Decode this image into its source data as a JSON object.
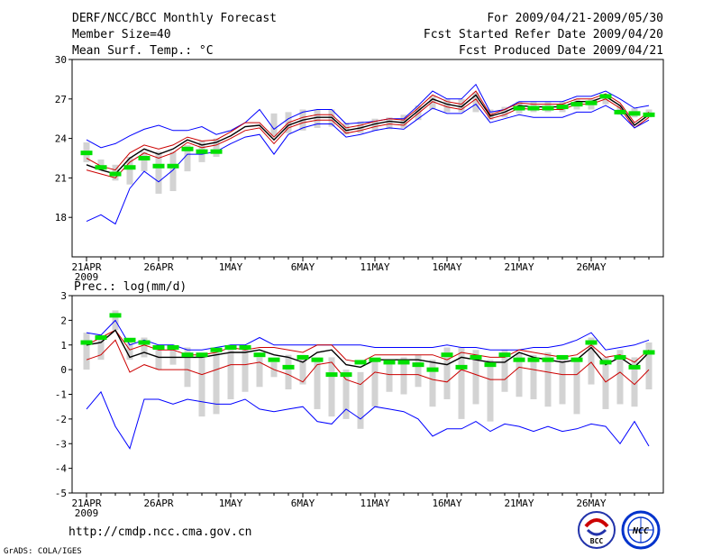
{
  "header": {
    "title": "DERF/NCC/BCC Monthly Forecast",
    "member_size": "Member Size=40",
    "for_range": "For 2009/04/21-2009/05/30",
    "fcst_started": "Fcst Started Refer Date 2009/04/20",
    "fcst_produced": "Fcst Produced Date 2009/04/21"
  },
  "footer": {
    "url": "http://cmdp.ncc.cma.gov.cn",
    "grads": "GrADS: COLA/IGES",
    "logo_bcc_text": "BCC",
    "logo_ncc_text": "NCC"
  },
  "colors": {
    "envelope": "#0000ff",
    "mean": "#000000",
    "lower": "#cc0000",
    "upper": "#cc0000",
    "obs": "#00e000",
    "box": "#d3d3d3"
  },
  "chart_data": [
    {
      "type": "line",
      "title": "Mean Surf. Temp.: °C",
      "ylim": [
        15,
        30
      ],
      "yticks": [
        18,
        21,
        24,
        27,
        30
      ],
      "year_label": "2009",
      "x_tick_labels": [
        "21APR",
        "26APR",
        "1MAY",
        "6MAY",
        "11MAY",
        "16MAY",
        "21MAY",
        "26MAY"
      ],
      "x_tick_days": [
        1,
        6,
        11,
        16,
        21,
        26,
        31,
        36
      ],
      "n_days": 40,
      "series": [
        {
          "name": "max",
          "values": [
            23.9,
            23.3,
            23.6,
            24.2,
            24.7,
            25.0,
            24.6,
            24.6,
            24.9,
            24.3,
            24.6,
            25.2,
            26.2,
            24.7,
            25.5,
            26.0,
            26.2,
            26.2,
            25.1,
            25.2,
            25.3,
            25.5,
            25.5,
            26.5,
            27.6,
            27.0,
            27.0,
            28.1,
            26.0,
            26.2,
            26.8,
            26.8,
            26.8,
            26.8,
            27.2,
            27.2,
            27.6,
            27.0,
            26.3,
            26.5
          ]
        },
        {
          "name": "upper",
          "values": [
            22.5,
            21.9,
            21.6,
            22.9,
            23.5,
            23.2,
            23.5,
            24.1,
            23.8,
            23.9,
            24.5,
            25.2,
            25.2,
            24.1,
            25.2,
            25.6,
            25.8,
            25.8,
            24.8,
            25.0,
            25.3,
            25.5,
            25.4,
            26.3,
            27.3,
            26.8,
            26.6,
            27.6,
            25.8,
            26.2,
            26.7,
            26.6,
            26.6,
            26.6,
            27.0,
            27.0,
            27.4,
            26.7,
            25.2,
            26.0
          ]
        },
        {
          "name": "mean",
          "values": [
            22.0,
            21.6,
            21.3,
            22.5,
            23.2,
            22.8,
            23.2,
            23.9,
            23.5,
            23.7,
            24.2,
            24.9,
            25.0,
            23.9,
            25.0,
            25.4,
            25.6,
            25.6,
            24.6,
            24.8,
            25.1,
            25.3,
            25.2,
            26.1,
            27.0,
            26.6,
            26.4,
            27.3,
            25.7,
            26.0,
            26.5,
            26.4,
            26.4,
            26.4,
            26.8,
            26.8,
            27.2,
            26.5,
            25.0,
            25.8
          ]
        },
        {
          "name": "lower",
          "values": [
            21.6,
            21.3,
            21.0,
            22.2,
            22.9,
            22.5,
            22.9,
            23.7,
            23.3,
            23.5,
            24.0,
            24.6,
            24.8,
            23.6,
            24.8,
            25.2,
            25.4,
            25.4,
            24.4,
            24.6,
            24.9,
            25.1,
            25.0,
            25.9,
            26.8,
            26.4,
            26.2,
            27.0,
            25.5,
            25.8,
            26.3,
            26.2,
            26.2,
            26.2,
            26.6,
            26.6,
            27.0,
            26.3,
            24.8,
            25.6
          ]
        },
        {
          "name": "min",
          "values": [
            17.7,
            18.2,
            17.5,
            20.2,
            21.5,
            20.7,
            21.6,
            22.8,
            22.8,
            23.0,
            23.6,
            24.1,
            24.3,
            22.8,
            24.3,
            24.8,
            25.1,
            25.1,
            24.1,
            24.3,
            24.6,
            24.8,
            24.7,
            25.5,
            26.3,
            25.9,
            25.9,
            26.6,
            25.2,
            25.5,
            25.8,
            25.6,
            25.6,
            25.6,
            26.0,
            26.0,
            26.5,
            25.9,
            24.8,
            25.4
          ]
        },
        {
          "name": "obs",
          "values": [
            22.9,
            21.8,
            21.3,
            21.8,
            22.5,
            21.9,
            21.9,
            23.2,
            23.0,
            23.0,
            null,
            null,
            null,
            null,
            null,
            null,
            null,
            null,
            null,
            null,
            null,
            null,
            null,
            null,
            null,
            null,
            null,
            null,
            null,
            null,
            26.3,
            26.3,
            26.3,
            26.4,
            26.6,
            26.7,
            27.2,
            26.0,
            25.9,
            25.8
          ]
        }
      ],
      "boxes": [
        [
          22.2,
          23.7
        ],
        [
          21.6,
          22.4
        ],
        [
          20.8,
          22.0
        ],
        [
          20.5,
          22.6
        ],
        [
          21.5,
          23.0
        ],
        [
          19.8,
          23.0
        ],
        [
          20.0,
          23.0
        ],
        [
          21.5,
          23.5
        ],
        [
          22.2,
          23.8
        ],
        [
          22.6,
          24.0
        ],
        [
          null,
          null
        ],
        [
          null,
          null
        ],
        [
          null,
          null
        ],
        [
          24.2,
          25.9
        ],
        [
          24.4,
          26.0
        ],
        [
          24.6,
          26.2
        ],
        [
          24.8,
          26.2
        ],
        [
          24.9,
          26.2
        ],
        [
          24.3,
          25.2
        ],
        [
          24.4,
          25.3
        ],
        [
          24.6,
          25.5
        ],
        [
          24.7,
          25.6
        ],
        [
          24.8,
          25.8
        ],
        [
          25.4,
          26.5
        ],
        [
          26.2,
          27.2
        ],
        [
          26.0,
          27.0
        ],
        [
          26.0,
          27.0
        ],
        [
          26.0,
          27.5
        ],
        [
          25.4,
          26.2
        ],
        [
          25.6,
          26.4
        ],
        [
          25.9,
          26.8
        ],
        [
          26.0,
          26.8
        ],
        [
          26.0,
          26.8
        ],
        [
          26.0,
          26.8
        ],
        [
          26.2,
          27.0
        ],
        [
          26.2,
          27.0
        ],
        [
          26.6,
          27.2
        ],
        [
          25.8,
          26.5
        ],
        [
          25.6,
          26.3
        ],
        [
          25.6,
          26.2
        ]
      ]
    },
    {
      "type": "line",
      "title": "Prec.: log(mm/d)",
      "ylim": [
        -5,
        3
      ],
      "yticks": [
        -5,
        -4,
        -3,
        -2,
        -1,
        0,
        1,
        2,
        3
      ],
      "year_label": "2009",
      "x_tick_labels": [
        "21APR",
        "26APR",
        "1MAY",
        "6MAY",
        "11MAY",
        "16MAY",
        "21MAY",
        "26MAY"
      ],
      "x_tick_days": [
        1,
        6,
        11,
        16,
        21,
        26,
        31,
        36
      ],
      "n_days": 40,
      "series": [
        {
          "name": "max",
          "values": [
            1.5,
            1.4,
            2.0,
            1.0,
            1.2,
            1.0,
            1.0,
            0.8,
            0.8,
            0.9,
            1.0,
            1.0,
            1.3,
            1.0,
            1.0,
            1.0,
            1.0,
            1.0,
            1.0,
            1.0,
            0.9,
            0.9,
            0.9,
            0.9,
            0.9,
            1.0,
            0.9,
            0.9,
            0.8,
            0.8,
            0.8,
            0.9,
            0.9,
            1.0,
            1.2,
            1.5,
            0.8,
            0.9,
            1.0,
            1.2
          ]
        },
        {
          "name": "upper",
          "values": [
            1.0,
            1.3,
            1.6,
            0.8,
            1.0,
            0.8,
            0.8,
            0.6,
            0.6,
            0.7,
            0.9,
            0.8,
            0.9,
            0.9,
            0.8,
            0.7,
            1.0,
            1.0,
            0.4,
            0.3,
            0.6,
            0.6,
            0.6,
            0.6,
            0.6,
            0.4,
            0.7,
            0.6,
            0.5,
            0.5,
            0.8,
            0.7,
            0.6,
            0.5,
            0.6,
            1.0,
            0.5,
            0.6,
            0.3,
            0.8
          ]
        },
        {
          "name": "mean",
          "values": [
            1.0,
            1.1,
            1.6,
            0.5,
            0.7,
            0.5,
            0.5,
            0.5,
            0.5,
            0.6,
            0.7,
            0.7,
            0.8,
            0.6,
            0.5,
            0.3,
            0.7,
            0.8,
            0.2,
            0.1,
            0.4,
            0.4,
            0.4,
            0.4,
            0.3,
            0.2,
            0.5,
            0.4,
            0.3,
            0.3,
            0.7,
            0.5,
            0.4,
            0.3,
            0.4,
            0.9,
            0.2,
            0.5,
            0.1,
            0.7
          ]
        },
        {
          "name": "lower",
          "values": [
            0.4,
            0.6,
            1.2,
            -0.1,
            0.2,
            0.0,
            0.0,
            0.0,
            -0.2,
            0.0,
            0.2,
            0.2,
            0.3,
            0.0,
            -0.2,
            -0.5,
            0.2,
            0.3,
            -0.4,
            -0.6,
            -0.1,
            -0.2,
            -0.2,
            -0.2,
            -0.4,
            -0.5,
            0.0,
            -0.2,
            -0.4,
            -0.4,
            0.1,
            0.0,
            -0.1,
            -0.2,
            -0.2,
            0.3,
            -0.5,
            -0.1,
            -0.6,
            0.0
          ]
        },
        {
          "name": "min",
          "values": [
            -1.6,
            -0.9,
            -2.3,
            -3.2,
            -1.2,
            -1.2,
            -1.4,
            -1.2,
            -1.3,
            -1.4,
            -1.4,
            -1.2,
            -1.6,
            -1.7,
            -1.6,
            -1.5,
            -2.1,
            -2.2,
            -1.6,
            -2.0,
            -1.5,
            -1.6,
            -1.7,
            -2.0,
            -2.7,
            -2.4,
            -2.4,
            -2.1,
            -2.5,
            -2.2,
            -2.3,
            -2.5,
            -2.3,
            -2.5,
            -2.4,
            -2.2,
            -2.3,
            -3.0,
            -2.1,
            -3.1
          ]
        },
        {
          "name": "obs",
          "values": [
            1.1,
            1.3,
            2.2,
            1.2,
            1.1,
            0.9,
            0.9,
            0.6,
            0.6,
            0.8,
            0.9,
            0.9,
            0.6,
            0.4,
            0.1,
            0.5,
            0.4,
            -0.2,
            -0.2,
            0.3,
            0.4,
            0.3,
            0.3,
            0.2,
            0.0,
            0.6,
            0.1,
            0.5,
            0.2,
            0.6,
            0.4,
            0.4,
            0.4,
            0.5,
            0.4,
            1.1,
            0.3,
            0.5,
            0.1,
            0.7
          ]
        }
      ],
      "boxes": [
        [
          0.0,
          1.5
        ],
        [
          0.4,
          1.3
        ],
        [
          1.6,
          2.4
        ],
        [
          0.4,
          1.2
        ],
        [
          0.5,
          1.3
        ],
        [
          0.0,
          1.0
        ],
        [
          0.2,
          0.9
        ],
        [
          -0.7,
          0.9
        ],
        [
          -1.9,
          0.5
        ],
        [
          -1.8,
          0.7
        ],
        [
          -1.2,
          0.8
        ],
        [
          -0.9,
          0.8
        ],
        [
          -0.7,
          0.5
        ],
        [
          -0.3,
          0.3
        ],
        [
          -0.8,
          0.6
        ],
        [
          -0.6,
          0.6
        ],
        [
          -1.6,
          0.5
        ],
        [
          -1.9,
          0.5
        ],
        [
          -2.0,
          0.0
        ],
        [
          -2.4,
          -0.1
        ],
        [
          -1.5,
          0.4
        ],
        [
          -0.9,
          0.3
        ],
        [
          -1.0,
          0.5
        ],
        [
          -0.7,
          0.6
        ],
        [
          -1.5,
          0.4
        ],
        [
          -1.2,
          0.9
        ],
        [
          -2.0,
          0.9
        ],
        [
          -1.4,
          0.8
        ],
        [
          -2.1,
          0.4
        ],
        [
          -0.9,
          0.8
        ],
        [
          -1.1,
          0.7
        ],
        [
          -1.2,
          0.6
        ],
        [
          -1.5,
          0.7
        ],
        [
          -1.4,
          0.5
        ],
        [
          -1.8,
          0.5
        ],
        [
          -0.6,
          1.3
        ],
        [
          -1.6,
          0.5
        ],
        [
          -1.4,
          0.8
        ],
        [
          -1.5,
          0.5
        ],
        [
          -0.8,
          1.1
        ]
      ]
    }
  ]
}
